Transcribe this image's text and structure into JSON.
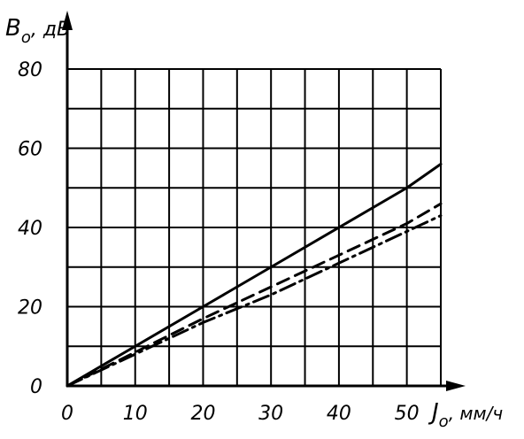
{
  "chart_data": {
    "type": "line",
    "ylabel": "В",
    "ylabel_sub": "о",
    "ylabel_unit": ", дБ",
    "xlabel": "J",
    "xlabel_sub": "о",
    "xlabel_unit": ", мм/ч",
    "xlim": [
      0,
      55
    ],
    "ylim": [
      0,
      80
    ],
    "xticks": [
      0,
      10,
      20,
      30,
      40,
      50
    ],
    "yticks": [
      0,
      20,
      40,
      60,
      80
    ],
    "x_grid_step": 5,
    "y_grid_step": 10,
    "grid": true,
    "series": [
      {
        "style": "solid",
        "x": [
          0,
          10,
          20,
          30,
          40,
          50,
          55
        ],
        "y": [
          0,
          10,
          20,
          30,
          40,
          50,
          56
        ]
      },
      {
        "style": "dashed",
        "x": [
          0,
          10,
          20,
          30,
          40,
          50,
          55
        ],
        "y": [
          0,
          8.5,
          17,
          25,
          33,
          41,
          46
        ]
      },
      {
        "style": "dash-dot",
        "x": [
          0,
          10,
          20,
          30,
          40,
          50,
          55
        ],
        "y": [
          0,
          8,
          16,
          23,
          31,
          39,
          43
        ]
      }
    ]
  }
}
